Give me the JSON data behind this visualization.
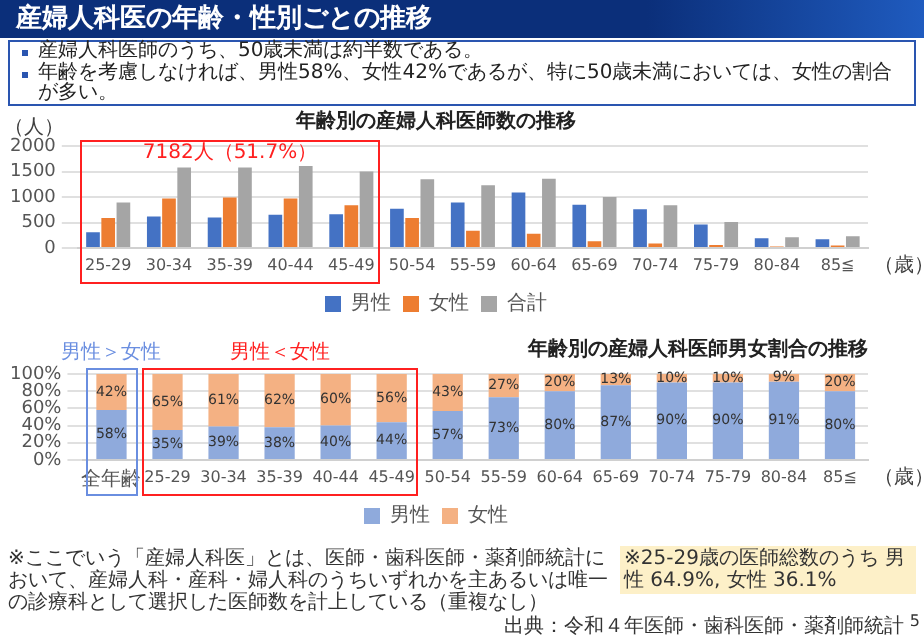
{
  "chart_data": [
    {
      "type": "bar",
      "title": "年齢別の産婦人科医師数の推移",
      "ylabel": "（人）",
      "xlabel": "（歳）",
      "categories": [
        "25-29",
        "30-34",
        "35-39",
        "40-44",
        "45-49",
        "50-54",
        "55-59",
        "60-64",
        "65-69",
        "70-74",
        "75-79",
        "80-84",
        "85≦"
      ],
      "series": [
        {
          "name": "男性",
          "color": "#4472c4",
          "values": [
            310,
            620,
            600,
            650,
            660,
            770,
            890,
            1090,
            850,
            760,
            460,
            190,
            170
          ]
        },
        {
          "name": "女性",
          "color": "#ed7d31",
          "values": [
            590,
            970,
            990,
            970,
            840,
            590,
            340,
            280,
            130,
            90,
            60,
            30,
            50
          ]
        },
        {
          "name": "合計",
          "color": "#a5a5a5",
          "values": [
            890,
            1580,
            1580,
            1610,
            1500,
            1350,
            1230,
            1360,
            1000,
            840,
            510,
            210,
            230
          ]
        }
      ],
      "ylim": [
        0,
        2000
      ],
      "yticks": [
        0,
        500,
        1000,
        1500,
        2000
      ],
      "grid": "y",
      "legend": "bottom",
      "annotations": [
        "産婦人科医の年齢・性別ごとの推移",
        "産婦人科医師のうち、50歳未満は約半数である。",
        "年齢を考慮しなければ、男性58%、女性42%であるが、特に50歳未満においては、女性の割合が多い。",
        "7182人（51.7%）"
      ]
    },
    {
      "type": "bar",
      "title": "年齢別の産婦人科医師男女割合の推移",
      "xlabel": "（歳）",
      "stacked": true,
      "categories": [
        "全年齢",
        "25-29",
        "30-34",
        "35-39",
        "40-44",
        "45-49",
        "50-54",
        "55-59",
        "60-64",
        "65-69",
        "70-74",
        "75-79",
        "80-84",
        "85≦"
      ],
      "series": [
        {
          "name": "男性",
          "color": "#8faadc",
          "values": [
            58,
            35,
            39,
            38,
            40,
            44,
            57,
            73,
            80,
            87,
            90,
            90,
            91,
            80
          ],
          "value_labels": [
            "58%",
            "35%",
            "39%",
            "38%",
            "40%",
            "44%",
            "57%",
            "73%",
            "80%",
            "87%",
            "90%",
            "90%",
            "91%",
            "80%"
          ]
        },
        {
          "name": "女性",
          "color": "#f4b183",
          "values": [
            42,
            65,
            61,
            62,
            60,
            56,
            43,
            27,
            20,
            13,
            10,
            10,
            9,
            20
          ],
          "value_labels": [
            "42%",
            "65%",
            "61%",
            "62%",
            "60%",
            "56%",
            "43%",
            "27%",
            "20%",
            "13%",
            "10%",
            "10%",
            "9%",
            "20%"
          ]
        }
      ],
      "ylim": [
        0,
        100
      ],
      "yticks": [
        {
          "value": 0,
          "label": "0%"
        },
        {
          "value": 20,
          "label": "20%"
        },
        {
          "value": 40,
          "label": "40%"
        },
        {
          "value": 60,
          "label": "60%"
        },
        {
          "value": 80,
          "label": "80%"
        },
        {
          "value": 100,
          "label": "100%"
        }
      ],
      "grid": "y",
      "legend": "bottom",
      "annotations": [
        "男性＞女性",
        "男性＜女性",
        "※25-29歳の医師総数のうち 男性 64.9%, 女性 36.1%",
        "※ここでいう「産婦人科医」とは、医師・歯科医師・薬剤師統計において、産婦人科・産科・婦人科のうちいずれかを主あるいは唯一の診療科として選択した医師数を計上している（重複なし）",
        "出典：令和４年医師・歯科医師・薬剤師統計",
        "5"
      ]
    }
  ]
}
